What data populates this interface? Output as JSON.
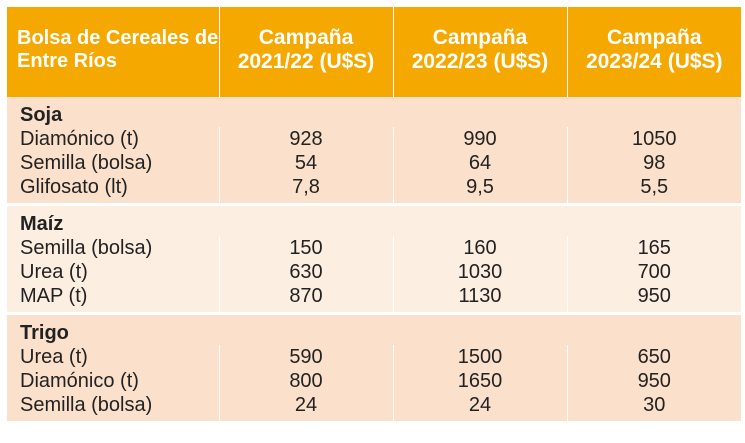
{
  "table": {
    "header": {
      "title": "Bolsa de Cereales de Entre Ríos",
      "col1": "Campaña 2021/22 (U$S)",
      "col2": "Campaña 2022/23 (U$S)",
      "col3": "Campaña 2023/24 (U$S)"
    },
    "sections": [
      {
        "name": "Soja",
        "rows": [
          {
            "label": "Diamónico (t)",
            "v1": "928",
            "v2": "990",
            "v3": "1050"
          },
          {
            "label": "Semilla (bolsa)",
            "v1": "54",
            "v2": "64",
            "v3": "98"
          },
          {
            "label": "Glifosato (lt)",
            "v1": "7,8",
            "v2": "9,5",
            "v3": "5,5"
          }
        ]
      },
      {
        "name": "Maíz",
        "rows": [
          {
            "label": "Semilla (bolsa)",
            "v1": "150",
            "v2": "160",
            "v3": "165"
          },
          {
            "label": "Urea (t)",
            "v1": "630",
            "v2": "1030",
            "v3": "700"
          },
          {
            "label": "MAP (t)",
            "v1": "870",
            "v2": "1130",
            "v3": "950"
          }
        ]
      },
      {
        "name": "Trigo",
        "rows": [
          {
            "label": "Urea (t)",
            "v1": "590",
            "v2": "1500",
            "v3": "650"
          },
          {
            "label": "Diamónico (t)",
            "v1": "800",
            "v2": "1650",
            "v3": "950"
          },
          {
            "label": "Semilla (bolsa)",
            "v1": "24",
            "v2": "24",
            "v3": "30"
          }
        ]
      }
    ]
  }
}
